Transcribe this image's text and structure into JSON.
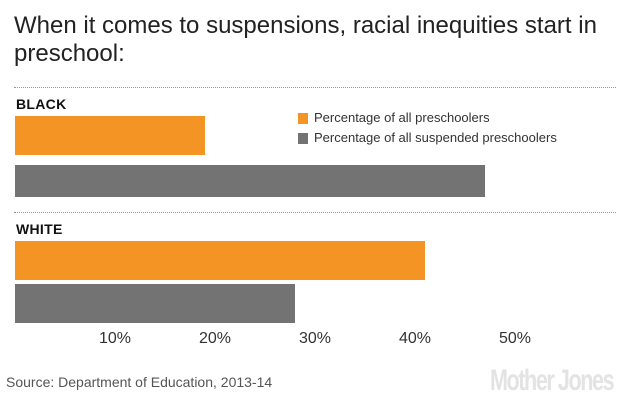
{
  "chart_data": {
    "type": "bar",
    "orientation": "horizontal",
    "title": "When it comes to suspensions, racial inequities start in preschool:",
    "categories": [
      "BLACK",
      "WHITE"
    ],
    "series": [
      {
        "name": "Percentage of all preschoolers",
        "color": "#f39425",
        "values": [
          19,
          41
        ]
      },
      {
        "name": "Percentage of all suspended preschoolers",
        "color": "#737373",
        "values": [
          47,
          28
        ]
      }
    ],
    "xlim": [
      0,
      60
    ],
    "xticks": [
      10,
      20,
      30,
      40,
      50
    ],
    "xtick_labels": [
      "10%",
      "20%",
      "30%",
      "40%",
      "50%"
    ],
    "legend_position": "top-right",
    "grid": false
  },
  "source": "Source: Department of Education, 2013-14",
  "logo": "Mother Jones"
}
